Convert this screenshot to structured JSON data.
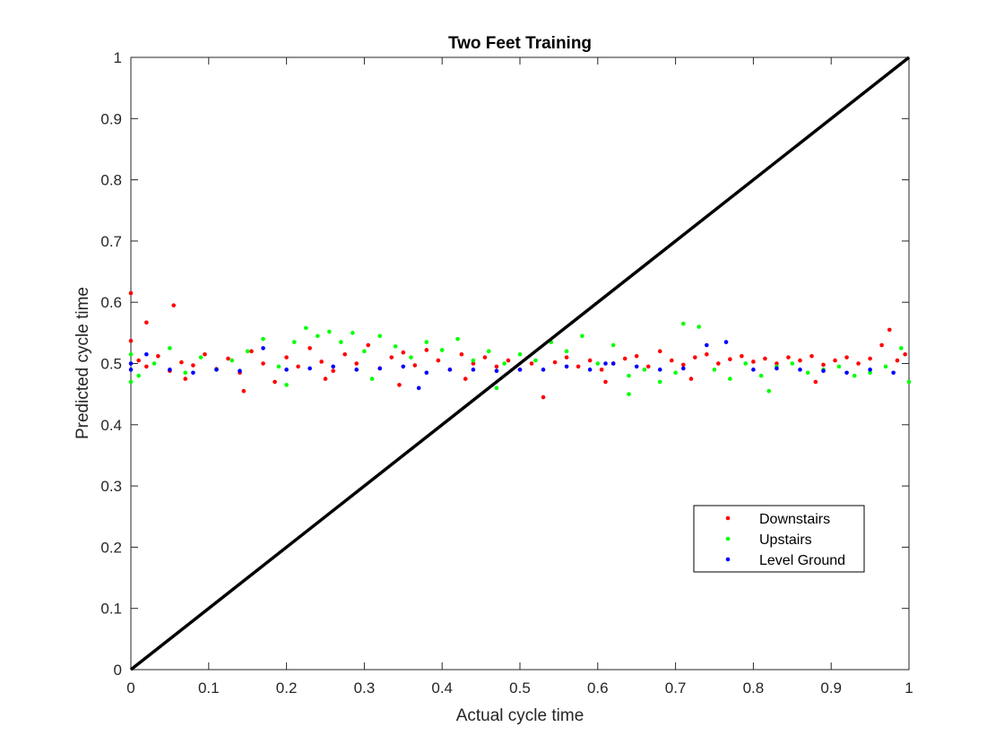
{
  "chart_data": {
    "type": "scatter",
    "title": "Two Feet Training",
    "xlabel": "Actual cycle time",
    "ylabel": "Predicted cycle time",
    "xlim": [
      0,
      1
    ],
    "ylim": [
      0,
      1
    ],
    "xticks": [
      "0",
      "0.1",
      "0.2",
      "0.3",
      "0.4",
      "0.5",
      "0.6",
      "0.7",
      "0.8",
      "0.9",
      "1"
    ],
    "yticks": [
      "0",
      "0.1",
      "0.2",
      "0.3",
      "0.4",
      "0.5",
      "0.6",
      "0.7",
      "0.8",
      "0.9",
      "1"
    ],
    "grid": false,
    "legend_position": "lower-right",
    "reference_line": {
      "name": "identity",
      "x": [
        0,
        1
      ],
      "y": [
        0,
        1
      ],
      "color": "#000000"
    },
    "series": [
      {
        "name": "Downstairs",
        "color": "#ff0000",
        "points": [
          [
            0.0,
            0.615
          ],
          [
            0.0,
            0.537
          ],
          [
            0.02,
            0.567
          ],
          [
            0.055,
            0.595
          ],
          [
            0.01,
            0.505
          ],
          [
            0.02,
            0.495
          ],
          [
            0.035,
            0.512
          ],
          [
            0.05,
            0.488
          ],
          [
            0.065,
            0.502
          ],
          [
            0.08,
            0.497
          ],
          [
            0.095,
            0.515
          ],
          [
            0.11,
            0.491
          ],
          [
            0.125,
            0.508
          ],
          [
            0.14,
            0.485
          ],
          [
            0.155,
            0.52
          ],
          [
            0.17,
            0.5
          ],
          [
            0.185,
            0.47
          ],
          [
            0.2,
            0.51
          ],
          [
            0.215,
            0.495
          ],
          [
            0.23,
            0.525
          ],
          [
            0.245,
            0.503
          ],
          [
            0.26,
            0.488
          ],
          [
            0.275,
            0.515
          ],
          [
            0.29,
            0.5
          ],
          [
            0.305,
            0.53
          ],
          [
            0.32,
            0.492
          ],
          [
            0.335,
            0.51
          ],
          [
            0.35,
            0.518
          ],
          [
            0.365,
            0.497
          ],
          [
            0.38,
            0.522
          ],
          [
            0.395,
            0.505
          ],
          [
            0.41,
            0.49
          ],
          [
            0.425,
            0.515
          ],
          [
            0.44,
            0.5
          ],
          [
            0.455,
            0.51
          ],
          [
            0.47,
            0.495
          ],
          [
            0.485,
            0.505
          ],
          [
            0.5,
            0.49
          ],
          [
            0.515,
            0.5
          ],
          [
            0.53,
            0.445
          ],
          [
            0.545,
            0.502
          ],
          [
            0.56,
            0.51
          ],
          [
            0.575,
            0.495
          ],
          [
            0.59,
            0.505
          ],
          [
            0.605,
            0.49
          ],
          [
            0.62,
            0.5
          ],
          [
            0.635,
            0.508
          ],
          [
            0.65,
            0.512
          ],
          [
            0.665,
            0.495
          ],
          [
            0.68,
            0.52
          ],
          [
            0.695,
            0.505
          ],
          [
            0.71,
            0.498
          ],
          [
            0.725,
            0.51
          ],
          [
            0.74,
            0.515
          ],
          [
            0.755,
            0.5
          ],
          [
            0.77,
            0.507
          ],
          [
            0.785,
            0.512
          ],
          [
            0.8,
            0.503
          ],
          [
            0.815,
            0.508
          ],
          [
            0.83,
            0.5
          ],
          [
            0.845,
            0.51
          ],
          [
            0.86,
            0.505
          ],
          [
            0.875,
            0.512
          ],
          [
            0.89,
            0.498
          ],
          [
            0.905,
            0.505
          ],
          [
            0.92,
            0.51
          ],
          [
            0.935,
            0.5
          ],
          [
            0.95,
            0.508
          ],
          [
            0.965,
            0.53
          ],
          [
            0.975,
            0.555
          ],
          [
            0.985,
            0.505
          ],
          [
            0.995,
            0.515
          ],
          [
            0.07,
            0.475
          ],
          [
            0.145,
            0.455
          ],
          [
            0.25,
            0.475
          ],
          [
            0.345,
            0.465
          ],
          [
            0.43,
            0.475
          ],
          [
            0.61,
            0.47
          ],
          [
            0.72,
            0.475
          ],
          [
            0.88,
            0.47
          ]
        ]
      },
      {
        "name": "Upstairs",
        "color": "#00ff00",
        "points": [
          [
            0.0,
            0.515
          ],
          [
            0.0,
            0.47
          ],
          [
            0.01,
            0.48
          ],
          [
            0.03,
            0.5
          ],
          [
            0.05,
            0.525
          ],
          [
            0.07,
            0.485
          ],
          [
            0.09,
            0.51
          ],
          [
            0.11,
            0.49
          ],
          [
            0.13,
            0.505
          ],
          [
            0.15,
            0.52
          ],
          [
            0.17,
            0.54
          ],
          [
            0.19,
            0.495
          ],
          [
            0.21,
            0.535
          ],
          [
            0.225,
            0.558
          ],
          [
            0.24,
            0.545
          ],
          [
            0.255,
            0.552
          ],
          [
            0.27,
            0.535
          ],
          [
            0.285,
            0.55
          ],
          [
            0.3,
            0.52
          ],
          [
            0.32,
            0.545
          ],
          [
            0.34,
            0.528
          ],
          [
            0.36,
            0.51
          ],
          [
            0.38,
            0.535
          ],
          [
            0.4,
            0.522
          ],
          [
            0.42,
            0.54
          ],
          [
            0.44,
            0.505
          ],
          [
            0.46,
            0.52
          ],
          [
            0.48,
            0.5
          ],
          [
            0.5,
            0.515
          ],
          [
            0.52,
            0.505
          ],
          [
            0.54,
            0.535
          ],
          [
            0.56,
            0.52
          ],
          [
            0.58,
            0.545
          ],
          [
            0.6,
            0.5
          ],
          [
            0.62,
            0.53
          ],
          [
            0.64,
            0.48
          ],
          [
            0.66,
            0.49
          ],
          [
            0.68,
            0.47
          ],
          [
            0.7,
            0.485
          ],
          [
            0.71,
            0.565
          ],
          [
            0.73,
            0.56
          ],
          [
            0.75,
            0.49
          ],
          [
            0.77,
            0.475
          ],
          [
            0.79,
            0.5
          ],
          [
            0.81,
            0.48
          ],
          [
            0.83,
            0.495
          ],
          [
            0.85,
            0.5
          ],
          [
            0.87,
            0.485
          ],
          [
            0.89,
            0.49
          ],
          [
            0.91,
            0.495
          ],
          [
            0.93,
            0.48
          ],
          [
            0.95,
            0.485
          ],
          [
            0.97,
            0.495
          ],
          [
            0.99,
            0.525
          ],
          [
            1.0,
            0.47
          ],
          [
            0.2,
            0.465
          ],
          [
            0.31,
            0.475
          ],
          [
            0.47,
            0.46
          ],
          [
            0.64,
            0.45
          ],
          [
            0.82,
            0.455
          ]
        ]
      },
      {
        "name": "Level Ground",
        "color": "#0000ff",
        "points": [
          [
            0.0,
            0.49
          ],
          [
            0.0,
            0.5
          ],
          [
            0.02,
            0.515
          ],
          [
            0.05,
            0.49
          ],
          [
            0.08,
            0.485
          ],
          [
            0.11,
            0.49
          ],
          [
            0.14,
            0.488
          ],
          [
            0.17,
            0.525
          ],
          [
            0.2,
            0.49
          ],
          [
            0.23,
            0.492
          ],
          [
            0.26,
            0.495
          ],
          [
            0.29,
            0.49
          ],
          [
            0.32,
            0.492
          ],
          [
            0.35,
            0.495
          ],
          [
            0.38,
            0.485
          ],
          [
            0.41,
            0.49
          ],
          [
            0.44,
            0.49
          ],
          [
            0.47,
            0.488
          ],
          [
            0.5,
            0.49
          ],
          [
            0.53,
            0.49
          ],
          [
            0.56,
            0.495
          ],
          [
            0.59,
            0.49
          ],
          [
            0.62,
            0.5
          ],
          [
            0.65,
            0.495
          ],
          [
            0.68,
            0.49
          ],
          [
            0.71,
            0.492
          ],
          [
            0.74,
            0.53
          ],
          [
            0.765,
            0.535
          ],
          [
            0.8,
            0.49
          ],
          [
            0.83,
            0.492
          ],
          [
            0.86,
            0.49
          ],
          [
            0.89,
            0.488
          ],
          [
            0.92,
            0.485
          ],
          [
            0.95,
            0.49
          ],
          [
            0.98,
            0.485
          ],
          [
            0.37,
            0.46
          ],
          [
            0.61,
            0.5
          ]
        ]
      }
    ]
  }
}
